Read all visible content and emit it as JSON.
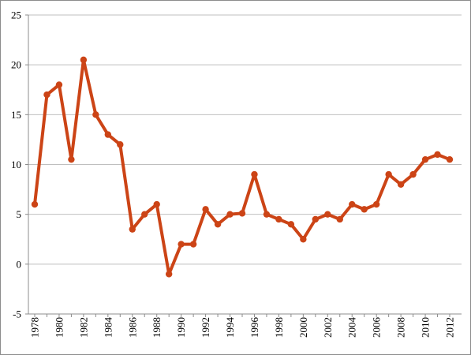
{
  "chart_data": {
    "type": "line",
    "title": "",
    "xlabel": "",
    "ylabel": "",
    "x": [
      1978,
      1979,
      1980,
      1981,
      1982,
      1983,
      1984,
      1985,
      1986,
      1987,
      1988,
      1989,
      1990,
      1991,
      1992,
      1993,
      1994,
      1995,
      1996,
      1997,
      1998,
      1999,
      2000,
      2001,
      2002,
      2003,
      2004,
      2005,
      2006,
      2007,
      2008,
      2009,
      2010,
      2011,
      2012
    ],
    "series": [
      {
        "color": "#cc4416",
        "values": [
          6,
          17,
          18,
          10.5,
          20.5,
          15,
          13,
          12,
          3.5,
          5,
          6,
          -1,
          2,
          2,
          5.5,
          4,
          5,
          5.1,
          9,
          5,
          4.5,
          4,
          2.5,
          4.5,
          5,
          4.5,
          6,
          5.5,
          6,
          9,
          8,
          9,
          10.5,
          11,
          10.5
        ]
      }
    ],
    "ylim": [
      -5,
      25
    ],
    "yticks": [
      -5,
      0,
      5,
      10,
      15,
      20,
      25
    ],
    "xticks": [
      1978,
      1980,
      1982,
      1984,
      1986,
      1988,
      1990,
      1992,
      1994,
      1996,
      1998,
      2000,
      2002,
      2004,
      2006,
      2008,
      2010,
      2012
    ],
    "grid": true,
    "legend": "none"
  }
}
